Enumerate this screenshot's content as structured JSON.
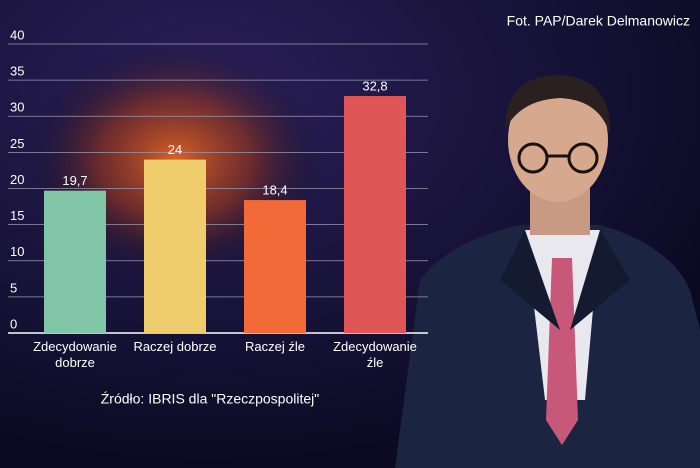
{
  "chart_data": {
    "type": "bar",
    "categories": [
      "Zdecydowanie dobrze",
      "Raczej dobrze",
      "Raczej źle",
      "Zdecydowanie źle"
    ],
    "values": [
      19.7,
      24,
      18.4,
      32.8
    ],
    "value_labels": [
      "19,7",
      "24",
      "18,4",
      "32,8"
    ],
    "colors": [
      "#80c5a5",
      "#f0cd6c",
      "#f26a37",
      "#e05656"
    ],
    "ylim": [
      0,
      40
    ],
    "yticks": [
      0,
      5,
      10,
      15,
      20,
      25,
      30,
      35,
      40
    ],
    "grid": true,
    "source": "Źródło: IBRIS dla \"Rzeczpospolitej\""
  },
  "photo_credit": "Fot. PAP/Darek Delmanowicz"
}
